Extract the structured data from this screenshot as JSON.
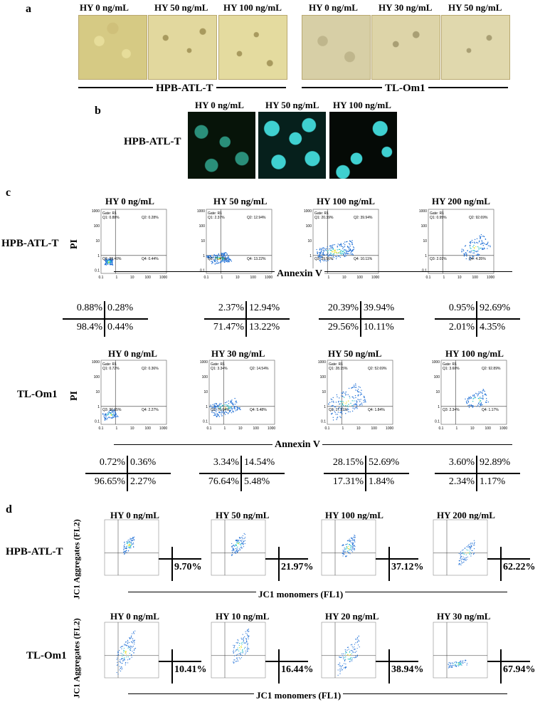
{
  "panels": {
    "a": "a",
    "b": "b",
    "c": "c",
    "d": "d"
  },
  "panel_a": {
    "hpb_labels": [
      "HY 0 ng/mL",
      "HY 50 ng/mL",
      "HY 100 ng/mL"
    ],
    "tlom_labels": [
      "HY 0 ng/mL",
      "HY 30 ng/mL",
      "HY 50 ng/mL"
    ],
    "hpb_group": "HPB-ATL-T",
    "tlom_group": "TL-Om1"
  },
  "panel_b": {
    "labels": [
      "HY 0 ng/mL",
      "HY 50 ng/mL",
      "HY 100 ng/mL"
    ],
    "row_label": "HPB-ATL-T"
  },
  "panel_c": {
    "row1_label": "HPB-ATL-T",
    "row2_label": "TL-Om1",
    "y_axis": "PI",
    "x_axis": "Annexin V",
    "row1_titles": [
      "HY 0 ng/mL",
      "HY 50 ng/mL",
      "HY 100 ng/mL",
      "HY 200 ng/mL"
    ],
    "row2_titles": [
      "HY 0 ng/mL",
      "HY 30 ng/mL",
      "HY 50 ng/mL",
      "HY 100 ng/mL"
    ],
    "row1_quads": [
      {
        "q1": "0.88%",
        "q2": "0.28%",
        "q3": "98.4%",
        "q4": "0.44%"
      },
      {
        "q1": "2.37%",
        "q2": "12.94%",
        "q3": "71.47%",
        "q4": "13.22%"
      },
      {
        "q1": "20.39%",
        "q2": "39.94%",
        "q3": "29.56%",
        "q4": "10.11%"
      },
      {
        "q1": "0.95%",
        "q2": "92.69%",
        "q3": "2.01%",
        "q4": "4.35%"
      }
    ],
    "row2_quads": [
      {
        "q1": "0.72%",
        "q2": "0.36%",
        "q3": "96.65%",
        "q4": "2.27%"
      },
      {
        "q1": "3.34%",
        "q2": "14.54%",
        "q3": "76.64%",
        "q4": "5.48%"
      },
      {
        "q1": "28.15%",
        "q2": "52.69%",
        "q3": "17.31%",
        "q4": "1.84%"
      },
      {
        "q1": "3.60%",
        "q2": "92.89%",
        "q3": "2.34%",
        "q4": "1.17%"
      }
    ],
    "plot_text": {
      "gate": "Gate: R1",
      "row1": [
        {
          "q1": "Q1: 0.88%",
          "q2": "Q2: 0.28%",
          "q3": "Q3: 98.40%",
          "q4": "Q4: 0.44%"
        },
        {
          "q1": "Q1: 2.37%",
          "q2": "Q2: 12.94%",
          "q3": "Q3: 71.47%",
          "q4": "Q4: 13.22%"
        },
        {
          "q1": "Q1: 20.39%",
          "q2": "Q2: 39.94%",
          "q3": "Q3: 29.56%",
          "q4": "Q4: 10.11%"
        },
        {
          "q1": "Q1: 0.95%",
          "q2": "Q2: 92.69%",
          "q3": "Q3: 2.01%",
          "q4": "Q4: 4.35%"
        }
      ],
      "row2": [
        {
          "q1": "Q1: 0.72%",
          "q2": "Q2: 0.36%",
          "q3": "Q3: 96.65%",
          "q4": "Q4: 2.27%"
        },
        {
          "q1": "Q1: 3.34%",
          "q2": "Q2: 14.54%",
          "q3": "Q3: 76.64%",
          "q4": "Q4: 5.48%"
        },
        {
          "q1": "Q1: 28.15%",
          "q2": "Q2: 52.69%",
          "q3": "Q3: 17.31%",
          "q4": "Q4: 1.84%"
        },
        {
          "q1": "Q1: 3.60%",
          "q2": "Q2: 92.89%",
          "q3": "Q3: 2.34%",
          "q4": "Q4: 1.17%"
        }
      ]
    },
    "ticks_y": [
      "1000",
      "100",
      "10",
      "1",
      "0.1"
    ],
    "ticks_x": [
      "0.1",
      "1",
      "10",
      "100",
      "1000"
    ]
  },
  "panel_d": {
    "row1_label": "HPB-ATL-T",
    "row2_label": "TL-Om1",
    "y_axis": "JC1 Aggregates (FL2)",
    "x_axis": "JC1 monomers (FL1)",
    "row1_titles": [
      "HY 0 ng/mL",
      "HY 50 ng/mL",
      "HY 100 ng/mL",
      "HY 200 ng/mL"
    ],
    "row2_titles": [
      "HY 0 ng/mL",
      "HY 10 ng/mL",
      "HY 20 ng/mL",
      "HY 30 ng/mL"
    ],
    "row1_values": [
      "9.70%",
      "21.97%",
      "37.12%",
      "62.22%"
    ],
    "row2_values": [
      "10.41%",
      "16.44%",
      "38.94%",
      "67.94%"
    ]
  },
  "colors": {
    "dot_blue": "#1f6fd6",
    "dot_cyan": "#22c1c8",
    "dot_yellow": "#e8e02a",
    "micro_bg": "#d9cd8f",
    "fluor_cell": "#33c9c9"
  }
}
